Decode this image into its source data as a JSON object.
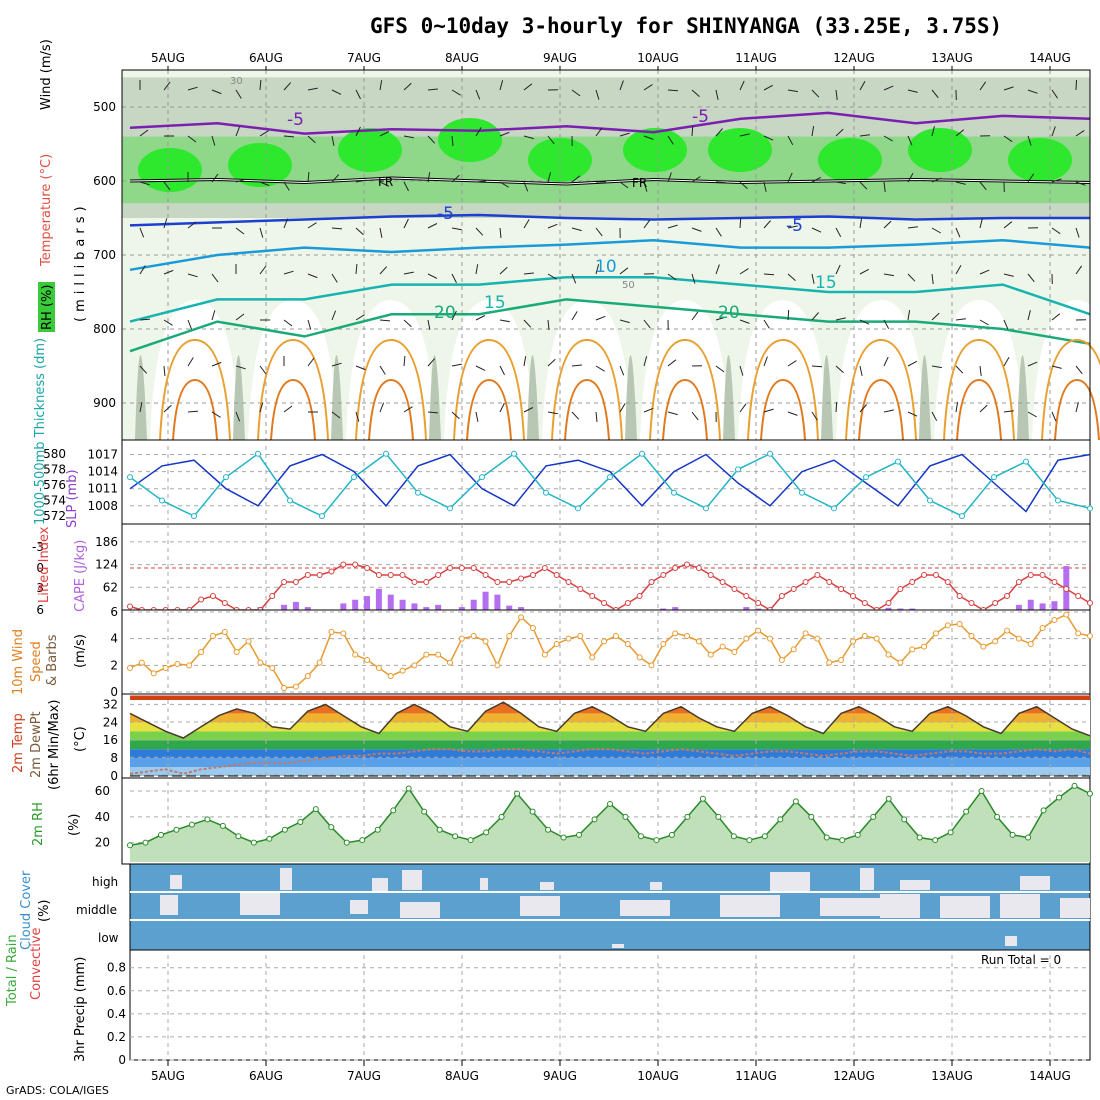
{
  "title": "GFS 0~10day 3-hourly for SHINYANGA (33.25E, 3.75S)",
  "footer": "GrADS: COLA/IGES",
  "chart_data": [
    {
      "panel": "upper-air",
      "type": "heatmap",
      "x_categories": [
        "5AUG",
        "6AUG",
        "7AUG",
        "8AUG",
        "9AUG",
        "10AUG",
        "11AUG",
        "12AUG",
        "13AUG",
        "14AUG"
      ],
      "ylabel": "(millibars)",
      "yticks": [
        500,
        600,
        700,
        800,
        900
      ],
      "ylim": [
        450,
        950
      ],
      "legend": {
        "wind": "Wind (m/s)",
        "temperature": "Temperature (°C)",
        "rh": "RH (%)"
      },
      "contour_labels": {
        "temp_minus5_upper": "-5",
        "freezing": "FR",
        "temp_minus5_mid": "-5",
        "temp_10": "10",
        "temp_15": "15",
        "temp_20": "20",
        "rh_30": "30",
        "rh_50": "50"
      },
      "series": [
        {
          "name": "-5",
          "values": [
            528,
            522,
            536,
            530,
            532,
            526,
            534,
            516,
            508,
            522,
            512,
            516
          ]
        },
        {
          "name": "FR",
          "values": [
            600,
            598,
            602,
            596,
            600,
            604,
            598,
            602,
            600,
            598,
            600,
            602
          ]
        },
        {
          "name": "5",
          "values": [
            660,
            656,
            652,
            648,
            646,
            650,
            652,
            650,
            648,
            652,
            650,
            650
          ]
        },
        {
          "name": "10",
          "values": [
            720,
            700,
            690,
            696,
            690,
            686,
            680,
            690,
            690,
            686,
            680,
            690
          ]
        },
        {
          "name": "15",
          "values": [
            790,
            760,
            760,
            740,
            740,
            730,
            730,
            740,
            750,
            750,
            740,
            780
          ]
        },
        {
          "name": "20",
          "values": [
            830,
            790,
            810,
            780,
            780,
            760,
            770,
            780,
            790,
            790,
            800,
            820
          ]
        }
      ]
    },
    {
      "panel": "slp-thickness",
      "type": "line",
      "ylabel_left": "1000-500mb Thickness (dm)",
      "ylabel_right": "SLP (mb)",
      "yticks_left": [
        572,
        574,
        576,
        578,
        580
      ],
      "yticks_right": [
        1008,
        1011,
        1014,
        1017
      ],
      "series": [
        {
          "name": "SLP",
          "values": [
            1011,
            1015,
            1016,
            1011,
            1008,
            1015,
            1017,
            1014,
            1008,
            1015,
            1017,
            1011,
            1008,
            1015,
            1016,
            1014,
            1008,
            1014,
            1017,
            1012,
            1008,
            1014,
            1016,
            1012,
            1008,
            1015,
            1017,
            1012,
            1007,
            1016,
            1017
          ]
        },
        {
          "name": "Thickness",
          "values": [
            577,
            574,
            572,
            577,
            580,
            574,
            572,
            577,
            580,
            575,
            573,
            577,
            580,
            575,
            573,
            577,
            580,
            575,
            573,
            578,
            580,
            575,
            573,
            577,
            579,
            574,
            572,
            577,
            579,
            574,
            573
          ]
        }
      ]
    },
    {
      "panel": "cape-li",
      "type": "bar",
      "ylabel_left": "Lifted Index",
      "ylabel_right": "CAPE (J/kg)",
      "yticks_left": [
        "-3",
        "0",
        "3",
        "6"
      ],
      "yticks_right": [
        62,
        124,
        186
      ],
      "series": [
        {
          "name": "CAPE",
          "values": [
            0,
            0,
            0,
            0,
            0,
            0,
            0,
            0,
            0,
            0,
            0,
            8,
            0,
            14,
            22,
            8,
            0,
            0,
            18,
            28,
            38,
            58,
            42,
            28,
            18,
            8,
            14,
            0,
            8,
            28,
            50,
            42,
            12,
            8,
            0,
            0,
            0,
            0,
            0,
            0,
            0,
            0,
            0,
            0,
            0,
            4,
            8,
            0,
            0,
            0,
            0,
            0,
            8,
            4,
            0,
            0,
            0,
            0,
            0,
            0,
            0,
            0,
            0,
            0,
            6,
            4,
            4,
            0,
            0,
            0,
            0,
            0,
            0,
            0,
            0,
            14,
            28,
            18,
            24,
            120,
            0,
            0
          ]
        },
        {
          "name": "Lifted Index",
          "values": [
            5.5,
            6,
            6,
            6,
            6,
            6,
            4.5,
            4,
            5,
            6,
            6,
            6,
            4,
            2,
            2,
            1,
            1,
            0.5,
            -0.5,
            -0.5,
            0,
            1,
            1,
            1,
            2,
            2,
            1,
            0,
            0,
            0,
            1,
            2,
            2,
            1.5,
            1,
            0,
            1,
            2,
            3,
            4,
            5,
            6,
            5,
            4,
            2,
            1,
            0,
            -0.5,
            0,
            1,
            2,
            3,
            4,
            5,
            6,
            4,
            3,
            2,
            1,
            2,
            3,
            4,
            5,
            6,
            5,
            3,
            2,
            1,
            1,
            2,
            4,
            5,
            6,
            5,
            4,
            2,
            1,
            1,
            2,
            3,
            4,
            5
          ]
        }
      ]
    },
    {
      "panel": "wind10m",
      "type": "line",
      "ylabel": "10m Wind Speed & Barbs (m/s)",
      "yticks": [
        0,
        2,
        4,
        6
      ],
      "series": [
        {
          "name": "10m Wind Speed",
          "values": [
            1.8,
            2.2,
            1.4,
            1.8,
            2.1,
            2.0,
            3.0,
            4.2,
            4.5,
            3.0,
            3.8,
            2.2,
            1.8,
            0.3,
            0.4,
            1.2,
            2.2,
            4.5,
            4.4,
            2.8,
            2.4,
            1.8,
            1.2,
            1.6,
            2.0,
            2.8,
            2.8,
            2.2,
            4.0,
            4.2,
            3.8,
            2.0,
            4.2,
            5.6,
            4.8,
            2.8,
            3.6,
            4.0,
            4.2,
            2.6,
            3.8,
            4.2,
            3.6,
            2.6,
            2.0,
            3.6,
            4.4,
            4.2,
            3.8,
            2.8,
            3.4,
            3.0,
            4.0,
            4.6,
            4.0,
            2.4,
            3.2,
            4.4,
            4.0,
            2.2,
            2.4,
            3.8,
            4.2,
            4.0,
            2.8,
            2.2,
            3.2,
            3.4,
            4.4,
            5.0,
            5.1,
            4.2,
            3.4,
            3.8,
            4.6,
            4.0,
            3.6,
            4.8,
            5.4,
            5.8,
            4.4,
            4.2
          ]
        }
      ]
    },
    {
      "panel": "temp",
      "type": "area",
      "ylabel": "2m Temp 2m DewPt (6hr Min/Max) (°C)",
      "yticks": [
        0,
        8,
        16,
        24,
        32
      ],
      "series": [
        {
          "name": "2m Temp",
          "values": [
            28,
            24,
            20,
            17,
            22,
            27,
            30,
            28,
            22,
            21,
            29,
            32,
            27,
            22,
            19,
            28,
            32,
            28,
            22,
            20,
            29,
            33,
            28,
            22,
            20,
            28,
            31,
            27,
            22,
            20,
            28,
            31,
            26,
            22,
            20,
            28,
            31,
            27,
            22,
            19,
            28,
            31,
            27,
            22,
            20,
            28,
            31,
            27,
            22,
            19,
            28,
            31,
            26,
            21,
            18
          ]
        },
        {
          "name": "2m DewPt",
          "values": [
            1,
            2,
            3,
            1,
            3,
            4,
            5,
            6,
            6,
            6,
            7,
            8,
            9,
            9,
            10,
            10,
            11,
            12,
            12,
            11,
            11,
            12,
            12,
            11,
            10,
            11,
            12,
            12,
            11,
            10,
            11,
            12,
            11,
            10,
            9,
            10,
            11,
            11,
            10,
            9,
            10,
            11,
            11,
            10,
            9,
            10,
            11,
            11,
            10,
            10,
            11,
            12,
            11,
            12,
            10
          ]
        }
      ]
    },
    {
      "panel": "rh2m",
      "type": "area",
      "ylabel": "2m RH (%)",
      "yticks": [
        20,
        40,
        60
      ],
      "series": [
        {
          "name": "2m RH",
          "values": [
            18,
            20,
            26,
            30,
            34,
            38,
            33,
            25,
            20,
            23,
            30,
            36,
            46,
            32,
            20,
            22,
            30,
            45,
            62,
            44,
            30,
            25,
            22,
            28,
            40,
            58,
            44,
            30,
            24,
            26,
            38,
            50,
            40,
            25,
            22,
            26,
            40,
            54,
            40,
            25,
            22,
            25,
            38,
            52,
            40,
            24,
            22,
            26,
            40,
            54,
            38,
            24,
            22,
            28,
            44,
            60,
            40,
            26,
            24,
            45,
            55,
            64,
            58
          ]
        }
      ]
    },
    {
      "panel": "cloud",
      "type": "heatmap",
      "ylabel": "Cloud Cover (%)",
      "yticks": [
        "high",
        "middle",
        "low"
      ]
    },
    {
      "panel": "precip",
      "type": "bar",
      "ylabel": "Total / Rain Convective 3hr Precip (mm)",
      "yticks": [
        0,
        0.2,
        0.4,
        0.6,
        0.8
      ],
      "annotation": "Run Total = 0",
      "values": []
    }
  ]
}
